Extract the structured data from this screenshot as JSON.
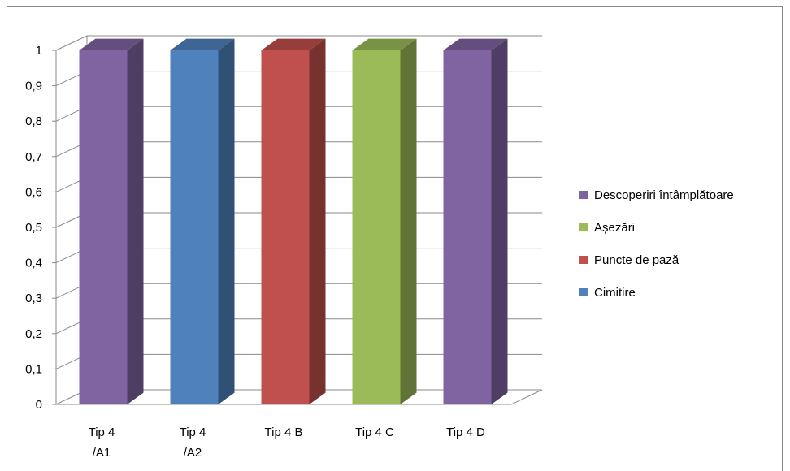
{
  "chart_data": {
    "type": "bar",
    "categories": [
      [
        "Tip 4",
        "/A1"
      ],
      [
        "Tip 4",
        "/A2"
      ],
      [
        "Tip 4 B"
      ],
      [
        "Tip 4 C"
      ],
      [
        "Tip 4 D"
      ]
    ],
    "values": [
      1,
      1,
      1,
      1,
      1
    ],
    "bar_series": [
      "Descoperiri întâmplătoare",
      "Cimitire",
      "Puncte de pază",
      "Așezări",
      "Descoperiri întâmplătoare"
    ],
    "series": [
      {
        "name": "Descoperiri întâmplătoare",
        "color": "#8064a2"
      },
      {
        "name": "Așezări",
        "color": "#9bbb59"
      },
      {
        "name": "Puncte de pază",
        "color": "#c0504d"
      },
      {
        "name": "Cimitire",
        "color": "#4f81bd"
      }
    ],
    "ylim": [
      0,
      1
    ],
    "yticks": [
      "0",
      "0,1",
      "0,2",
      "0,3",
      "0,4",
      "0,5",
      "0,6",
      "0,7",
      "0,8",
      "0,9",
      "1"
    ],
    "grid": true,
    "legend_position": "right",
    "title": "",
    "xlabel": "",
    "ylabel": ""
  }
}
